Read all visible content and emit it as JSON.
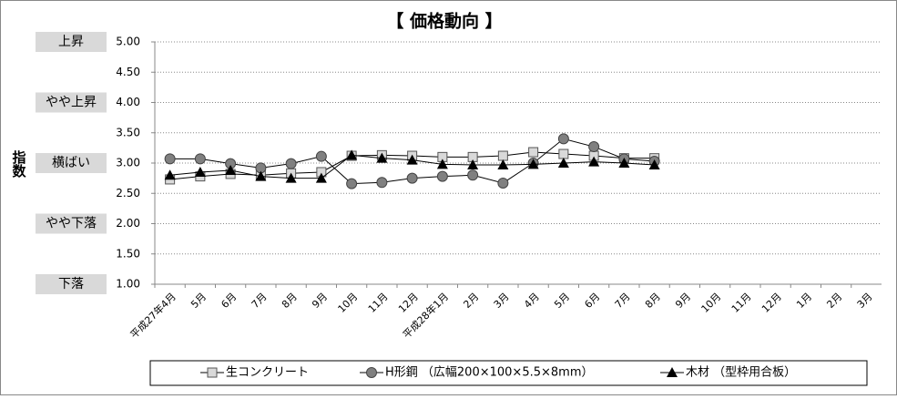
{
  "chart_data": {
    "type": "line",
    "title": "【 価格動向 】",
    "y_axis_label": "指数",
    "categories": [
      "平成27年4月",
      "5月",
      "6月",
      "7月",
      "8月",
      "9月",
      "10月",
      "11月",
      "12月",
      "平成28年1月",
      "2月",
      "3月",
      "4月",
      "5月",
      "6月",
      "7月",
      "8月",
      "9月",
      "10月",
      "11月",
      "12月",
      "1月",
      "2月",
      "3月"
    ],
    "ylim": [
      1,
      5
    ],
    "yticks": [
      {
        "value": 1,
        "label": "1.00"
      },
      {
        "value": 1.5,
        "label": "1.50"
      },
      {
        "value": 2,
        "label": "2.00"
      },
      {
        "value": 2.5,
        "label": "2.50"
      },
      {
        "value": 3,
        "label": "3.00"
      },
      {
        "value": 3.5,
        "label": "3.50"
      },
      {
        "value": 4,
        "label": "4.00"
      },
      {
        "value": 4.5,
        "label": "4.50"
      },
      {
        "value": 5,
        "label": "5.00"
      }
    ],
    "level_labels": [
      {
        "value": 5,
        "label": "上昇"
      },
      {
        "value": 4,
        "label": "やや上昇"
      },
      {
        "value": 3,
        "label": "横ばい"
      },
      {
        "value": 2,
        "label": "やや下落"
      },
      {
        "value": 1,
        "label": "下落"
      }
    ],
    "grid": true,
    "legend": "bottom",
    "series": [
      {
        "name": "生コンクリート",
        "marker": "square",
        "color": "#d9d9d9",
        "values": [
          2.73,
          2.78,
          2.82,
          2.8,
          2.83,
          2.85,
          3.12,
          3.13,
          3.12,
          3.1,
          3.1,
          3.12,
          3.18,
          3.15,
          3.12,
          3.08,
          3.08,
          null,
          null,
          null,
          null,
          null,
          null,
          null
        ]
      },
      {
        "name": "H形鋼 （広幅200×100×5.5×8mm）",
        "marker": "circle",
        "color": "#808080",
        "values": [
          3.07,
          3.07,
          2.99,
          2.92,
          2.99,
          3.11,
          2.66,
          2.68,
          2.75,
          2.78,
          2.8,
          2.67,
          3.0,
          3.4,
          3.27,
          3.07,
          3.03,
          null,
          null,
          null,
          null,
          null,
          null,
          null
        ]
      },
      {
        "name": "木材 （型枠用合板）",
        "marker": "triangle",
        "color": "#000000",
        "values": [
          2.8,
          2.85,
          2.88,
          2.78,
          2.75,
          2.75,
          3.13,
          3.08,
          3.05,
          2.98,
          2.97,
          2.97,
          2.98,
          3.0,
          3.02,
          3.0,
          2.97,
          null,
          null,
          null,
          null,
          null,
          null,
          null
        ]
      }
    ]
  }
}
